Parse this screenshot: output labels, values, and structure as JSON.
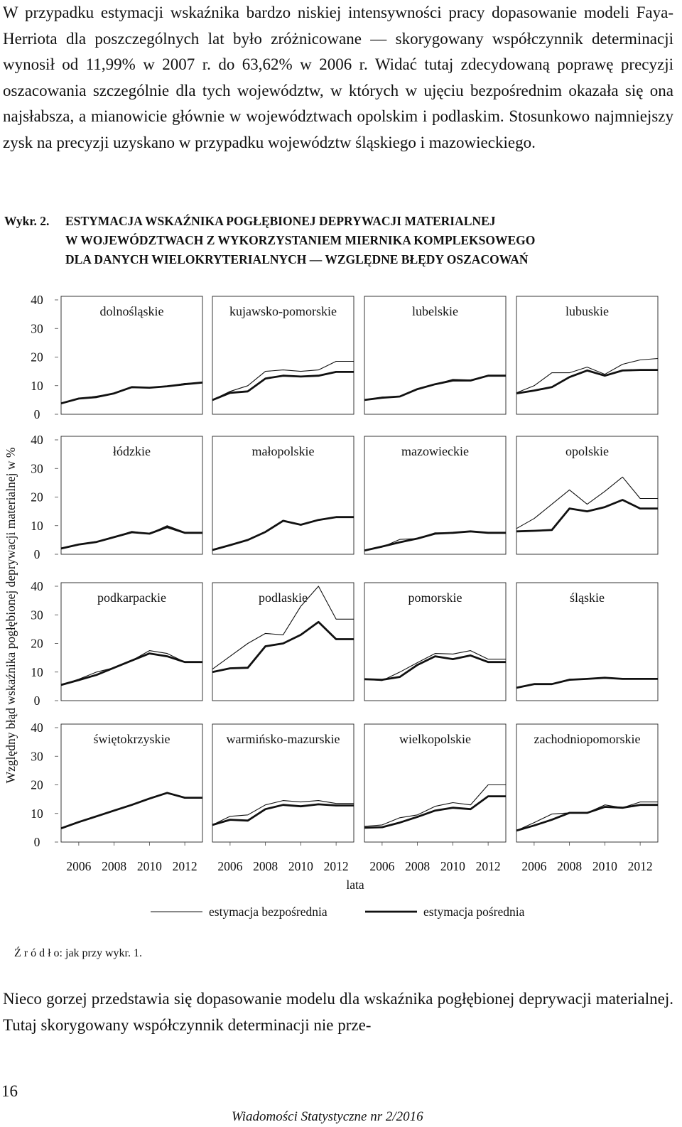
{
  "text": {
    "paragraph_top": "W przypadku estymacji wskaźnika bardzo niskiej intensywności pracy dopasowanie modeli Faya-Herriota dla poszczególnych lat było zróżnicowane — skorygowany współczynnik determinacji wynosił od 11,99% w 2007 r. do 63,62% w 2006 r. Widać tutaj zdecydowaną poprawę precyzji oszacowania szczególnie dla tych województw, w których w ujęciu bezpośrednim okazała się ona najsłabsza, a mianowicie głównie w województwach opolskim i podlaskim. Stosunkowo najmniejszy zysk na precyzji uzyskano w przypadku województw śląskiego i mazowieckiego.",
    "caption_label": "Wykr. 2.",
    "caption_line1": "ESTYMACJA WSKAŹNIKA POGŁĘBIONEJ DEPRYWACJI MATERIALNEJ",
    "caption_line2": "W WOJEWÓDZTWACH Z WYKORZYSTANIEM MIERNIKA KOMPLEKSOWEGO",
    "caption_line3": "DLA DANYCH WIELOKRYTERIALNYCH — WZGLĘDNE BŁĘDY OSZACOWAŃ",
    "source": "Ź r ó d ł o: jak przy wykr. 1.",
    "paragraph_bottom": "Nieco gorzej przedstawia się dopasowanie modelu dla wskaźnika pogłębionej deprywacji materialnej. Tutaj skorygowany współczynnik determinacji nie prze-",
    "page_number": "16",
    "journal": "Wiadomości Statystyczne nr 2/2016"
  },
  "chart_data": {
    "type": "line",
    "layout": "small-multiples",
    "ylabel": "Względny błąd wskaźnika pogłębionej deprywacji materialnej w %",
    "xlabel": "lata",
    "ylim": [
      0,
      40
    ],
    "yticks": [
      "0",
      "10",
      "20",
      "30",
      "40"
    ],
    "xlim": [
      2005,
      2013
    ],
    "xticks": [
      "2006",
      "2008",
      "2010",
      "2012"
    ],
    "x": [
      2005,
      2006,
      2007,
      2008,
      2009,
      2010,
      2011,
      2012,
      2013
    ],
    "legend": [
      {
        "name": "estymacja bezpośrednia",
        "style": "thin"
      },
      {
        "name": "estymacja pośrednia",
        "style": "thick"
      }
    ],
    "legend_position": "bottom",
    "panels": [
      {
        "name": "dolnośląskie",
        "direct": [
          3.8,
          5.5,
          6.3,
          7.3,
          9.3,
          9.3,
          9.7,
          10.8,
          11
        ],
        "indirect": [
          3.8,
          5.5,
          6.0,
          7.3,
          9.5,
          9.3,
          9.8,
          10.5,
          11.1
        ]
      },
      {
        "name": "kujawsko-pomorskie",
        "direct": [
          5,
          8,
          10,
          15,
          15.5,
          15,
          15.5,
          18.5,
          18.5
        ],
        "indirect": [
          5,
          7.5,
          8,
          12.5,
          13.5,
          13.2,
          13.5,
          14.8,
          14.8
        ]
      },
      {
        "name": "lubelskie",
        "direct": [
          5,
          6,
          6.2,
          8.8,
          10.5,
          12.2,
          12,
          13.3,
          13.3
        ],
        "indirect": [
          5,
          5.8,
          6.2,
          8.8,
          10.5,
          11.8,
          11.8,
          13.5,
          13.5
        ]
      },
      {
        "name": "lubuskie",
        "direct": [
          7.5,
          10,
          14.5,
          14.5,
          16.5,
          14,
          17.5,
          19,
          19.5
        ],
        "indirect": [
          7.3,
          8.3,
          9.5,
          13,
          15.3,
          13.5,
          15.3,
          15.5,
          15.5
        ]
      },
      {
        "name": "łódzkie",
        "direct": [
          2,
          3.4,
          4.5,
          6,
          8,
          7.2,
          10,
          7.7,
          7.7
        ],
        "indirect": [
          2,
          3.4,
          4.3,
          6,
          7.7,
          7.2,
          9.5,
          7.5,
          7.5
        ]
      },
      {
        "name": "małopolskie",
        "direct": [
          1.5,
          3.2,
          5,
          7.8,
          11.7,
          10.3,
          12,
          13,
          13
        ],
        "indirect": [
          1.5,
          3.2,
          5,
          7.8,
          11.7,
          10.3,
          12,
          13,
          13
        ]
      },
      {
        "name": "mazowieckie",
        "direct": [
          1.3,
          2.5,
          5.2,
          5.5,
          7.5,
          7.5,
          8,
          7.5,
          7.5
        ],
        "indirect": [
          1.3,
          2.7,
          4.2,
          5.5,
          7.2,
          7.5,
          8,
          7.5,
          7.5
        ]
      },
      {
        "name": "opolskie",
        "direct": [
          9,
          12.5,
          17.5,
          22.5,
          17.5,
          22,
          27,
          19.5,
          19.5
        ],
        "indirect": [
          8,
          8.2,
          8.5,
          16,
          15,
          16.5,
          19,
          16,
          16
        ]
      },
      {
        "name": "podkarpackie",
        "direct": [
          5.5,
          7.5,
          10,
          11.5,
          14,
          17.5,
          16.5,
          13.5,
          13.5
        ],
        "indirect": [
          5.5,
          7.2,
          9,
          11.5,
          14,
          16.5,
          15.5,
          13.5,
          13.5
        ]
      },
      {
        "name": "podlaskie",
        "direct": [
          11,
          15.5,
          20,
          23.5,
          23,
          33,
          40,
          28.5,
          28.5
        ],
        "indirect": [
          10,
          11.3,
          11.5,
          19,
          20,
          23,
          27.5,
          21.5,
          21.5
        ]
      },
      {
        "name": "pomorskie",
        "direct": [
          7.5,
          7,
          10,
          13.3,
          16.5,
          16.3,
          17.5,
          14.5,
          14.5
        ],
        "indirect": [
          7.5,
          7.3,
          8.3,
          12.5,
          15.5,
          14.5,
          15.8,
          13.5,
          13.5
        ]
      },
      {
        "name": "śląskie",
        "direct": [
          4.5,
          5.8,
          5.8,
          7.5,
          7.6,
          8,
          7.6,
          7.8,
          7.8
        ],
        "indirect": [
          4.5,
          5.8,
          5.8,
          7.3,
          7.6,
          8,
          7.6,
          7.6,
          7.6
        ]
      },
      {
        "name": "świętokrzyskie",
        "direct": [
          4.8,
          7,
          9.2,
          11,
          13,
          15.2,
          17.2,
          15.5,
          15.5
        ],
        "indirect": [
          4.8,
          7,
          9,
          11,
          13,
          15.2,
          17.2,
          15.5,
          15.5
        ]
      },
      {
        "name": "warmińsko-mazurskie",
        "direct": [
          6,
          9,
          9.5,
          13,
          14.5,
          14,
          14.5,
          13.5,
          13.5
        ],
        "indirect": [
          6,
          7.8,
          7.5,
          11.5,
          13,
          12.5,
          13.2,
          12.8,
          12.8
        ]
      },
      {
        "name": "wielkopolskie",
        "direct": [
          5.5,
          6,
          8.5,
          9.5,
          12.5,
          13.8,
          13,
          20,
          20
        ],
        "indirect": [
          5,
          5.2,
          6.8,
          8.8,
          11,
          12,
          11.5,
          16,
          16
        ]
      },
      {
        "name": "zachodniopomorskie",
        "direct": [
          4,
          6.8,
          9.8,
          10.2,
          10.2,
          13,
          12,
          14,
          14
        ],
        "indirect": [
          4,
          5.8,
          7.8,
          10.2,
          10.2,
          12.3,
          12,
          13,
          13
        ]
      }
    ]
  }
}
